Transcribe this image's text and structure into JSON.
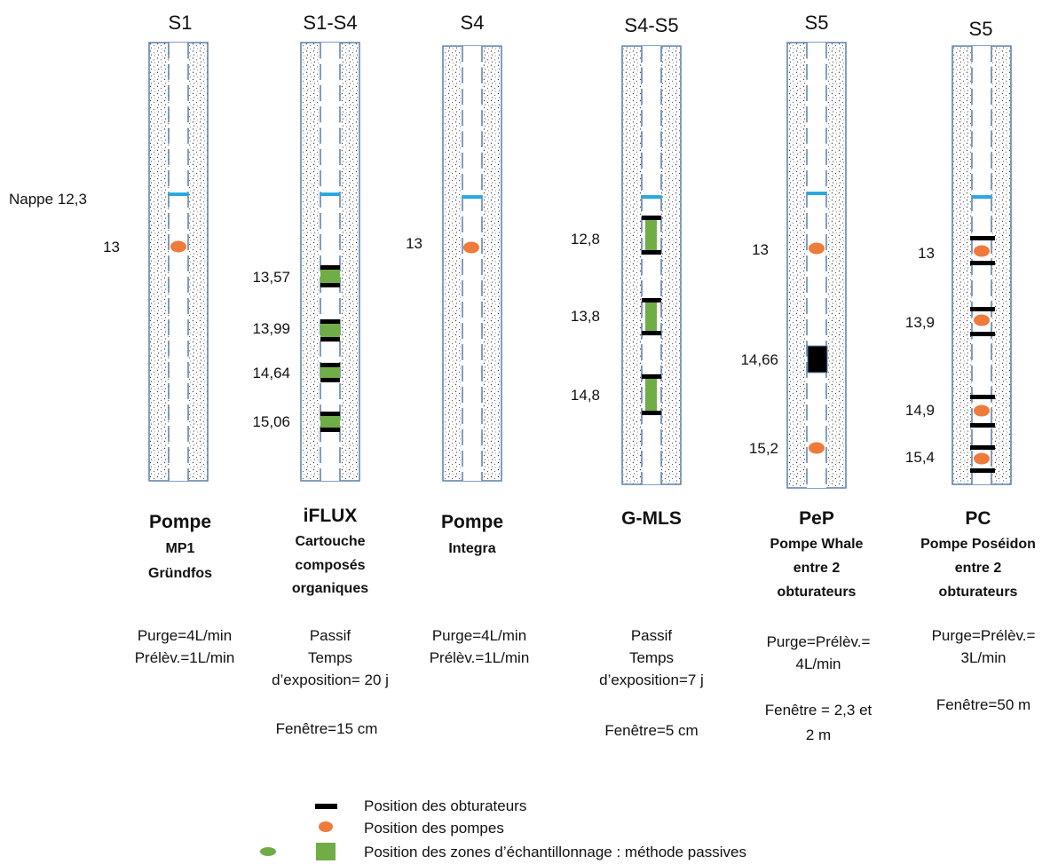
{
  "water_table_label": "Nappe 12,3",
  "wells": [
    {
      "header": "S1",
      "depth_labels": [
        "13"
      ],
      "name": "Pompe",
      "subtitle": [
        "MP1",
        "Gründfos"
      ],
      "info": [
        "Purge=4L/min",
        "Prélèv.=1L/min"
      ]
    },
    {
      "header": "S1-S4",
      "depth_labels": [
        "13,57",
        "13,99",
        "14,64",
        "15,06"
      ],
      "name": "iFLUX",
      "subtitle": [
        "Cartouche",
        "composés",
        "organiques"
      ],
      "info": [
        "Passif",
        "Temps",
        "d’exposition= 20 j",
        "",
        "Fenêtre=15 cm"
      ]
    },
    {
      "header": "S4",
      "depth_labels": [
        "13"
      ],
      "name": "Pompe",
      "subtitle": [
        "Integra"
      ],
      "info": [
        "Purge=4L/min",
        "Prélèv.=1L/min"
      ]
    },
    {
      "header": "S4-S5",
      "depth_labels": [
        "12,8",
        "13,8",
        "14,8"
      ],
      "name": "G-MLS",
      "subtitle": [],
      "info": [
        "Passif",
        "Temps",
        "d’exposition=7 j",
        "",
        "Fenêtre=5 cm"
      ]
    },
    {
      "header": "S5",
      "depth_labels": [
        "13",
        "14,66",
        "15,2"
      ],
      "name": "PeP",
      "subtitle": [
        "Pompe Whale",
        "entre 2",
        "obturateurs"
      ],
      "info": [
        "Purge=Prélèv.=",
        "4L/min",
        "",
        "Fenêtre = 2,3 et",
        "2 m"
      ]
    },
    {
      "header": "S5",
      "depth_labels": [
        "13",
        "13,9",
        "14,9",
        "15,4"
      ],
      "name": "PC",
      "subtitle": [
        "Pompe Poséidon",
        "entre 2",
        "obturateurs"
      ],
      "info": [
        "Purge=Prélèv.=",
        "3L/min",
        "",
        "Fenêtre=50 m"
      ]
    }
  ],
  "legend": {
    "packer": "Position des obturateurs",
    "pump": "Position des pompes",
    "passive": "Position des zones d’échantillonnage : méthode passives"
  },
  "colors": {
    "casing_border": "#5b7fa8",
    "water_table": "#29a9e0",
    "pump": "#ef7b3a",
    "passive_zone": "#70ad47",
    "packer": "#000000"
  }
}
